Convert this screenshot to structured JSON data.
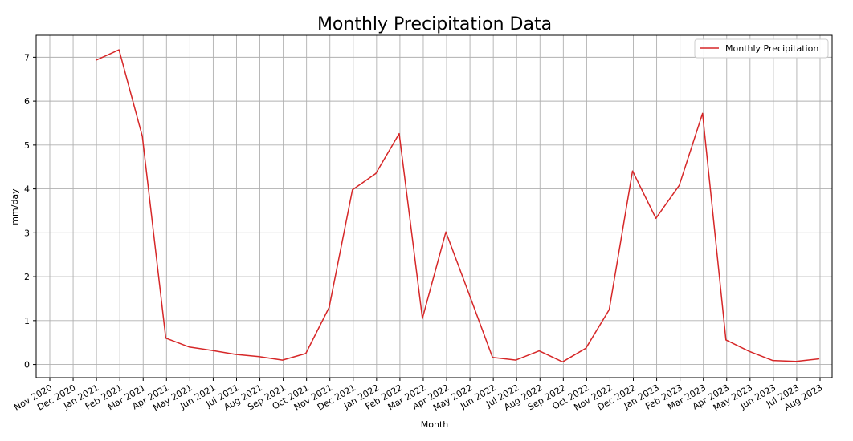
{
  "chart_data": {
    "type": "line",
    "title": "Monthly Precipitation Data",
    "xlabel": "Month",
    "ylabel": "mm/day",
    "x_ticks": [
      "Nov 2020",
      "Dec 2020",
      "Jan 2021",
      "Feb 2021",
      "Mar 2021",
      "Apr 2021",
      "May 2021",
      "Jun 2021",
      "Jul 2021",
      "Aug 2021",
      "Sep 2021",
      "Oct 2021",
      "Nov 2021",
      "Dec 2021",
      "Jan 2022",
      "Feb 2022",
      "Mar 2022",
      "Apr 2022",
      "May 2022",
      "Jun 2022",
      "Jul 2022",
      "Aug 2022",
      "Sep 2022",
      "Oct 2022",
      "Nov 2022",
      "Dec 2022",
      "Jan 2023",
      "Feb 2023",
      "Mar 2023",
      "Apr 2023",
      "May 2023",
      "Jun 2023",
      "Jul 2023",
      "Aug 2023"
    ],
    "y_ticks": [
      "0",
      "1",
      "2",
      "3",
      "4",
      "5",
      "6",
      "7"
    ],
    "ylim": [
      -0.3,
      7.5
    ],
    "grid": true,
    "legend_position": "top-right",
    "series": [
      {
        "name": "Monthly Precipitation",
        "color": "#d62728",
        "x": [
          "2020-12-31",
          "2021-01-31",
          "2021-02-28",
          "2021-03-31",
          "2021-04-30",
          "2021-05-31",
          "2021-06-30",
          "2021-07-31",
          "2021-08-31",
          "2021-09-30",
          "2021-10-31",
          "2021-11-30",
          "2021-12-31",
          "2022-01-31",
          "2022-02-28",
          "2022-03-31",
          "2022-04-30",
          "2022-05-31",
          "2022-06-30",
          "2022-07-31",
          "2022-08-31",
          "2022-09-30",
          "2022-10-31",
          "2022-11-30",
          "2022-12-31",
          "2023-01-31",
          "2023-02-28",
          "2023-03-31",
          "2023-04-30",
          "2023-05-31",
          "2023-06-30",
          "2023-07-31"
        ],
        "values": [
          6.93,
          7.17,
          5.2,
          0.6,
          0.4,
          0.32,
          0.23,
          0.18,
          0.1,
          0.25,
          1.3,
          3.98,
          4.35,
          5.26,
          1.05,
          3.02,
          1.6,
          0.16,
          0.1,
          0.31,
          0.06,
          0.37,
          1.25,
          4.41,
          3.33,
          4.08,
          5.72,
          0.56,
          0.3,
          0.09,
          0.07,
          0.13
        ]
      }
    ]
  }
}
